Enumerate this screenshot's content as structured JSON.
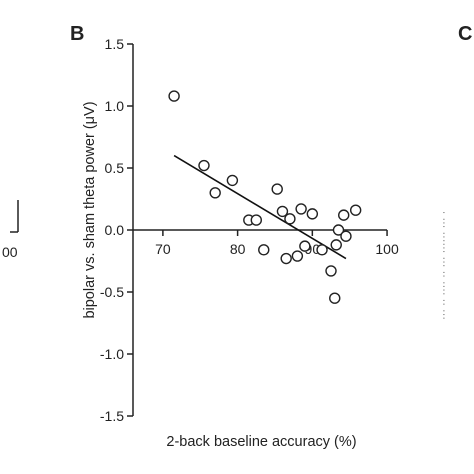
{
  "panels": {
    "main_letter": "B",
    "right_letter": "C"
  },
  "left_edge": {
    "tick_label": "00"
  },
  "chart_data": {
    "type": "scatter",
    "title": "",
    "xlabel": "2-back baseline accuracy (%)",
    "ylabel": "bipolar vs. sham theta power (μV)",
    "xlim": [
      66,
      102
    ],
    "ylim": [
      -1.5,
      1.5
    ],
    "x_ticks": [
      70,
      80,
      90,
      100
    ],
    "x_tick_labels": [
      "70",
      "80",
      "90",
      "100"
    ],
    "y_ticks": [
      1.5,
      1.0,
      0.5,
      0.0,
      -0.5,
      -1.0,
      -1.5
    ],
    "y_tick_labels": [
      "1.5",
      "1.0",
      "0.5",
      "0.0",
      "-0.5",
      "-1.0",
      "-1.5"
    ],
    "grid": false,
    "zero_line": true,
    "points": [
      {
        "x": 71.5,
        "y": 1.08
      },
      {
        "x": 75.5,
        "y": 0.52
      },
      {
        "x": 77.0,
        "y": 0.3
      },
      {
        "x": 79.3,
        "y": 0.4
      },
      {
        "x": 81.5,
        "y": 0.08
      },
      {
        "x": 82.5,
        "y": 0.08
      },
      {
        "x": 83.5,
        "y": -0.16
      },
      {
        "x": 85.3,
        "y": 0.33
      },
      {
        "x": 86.0,
        "y": 0.15
      },
      {
        "x": 86.5,
        "y": -0.23
      },
      {
        "x": 87.0,
        "y": 0.09
      },
      {
        "x": 88.0,
        "y": -0.21
      },
      {
        "x": 88.5,
        "y": 0.17
      },
      {
        "x": 89.0,
        "y": -0.13
      },
      {
        "x": 90.0,
        "y": 0.13
      },
      {
        "x": 91.3,
        "y": -0.16
      },
      {
        "x": 92.5,
        "y": -0.33
      },
      {
        "x": 93.0,
        "y": -0.55
      },
      {
        "x": 93.2,
        "y": -0.12
      },
      {
        "x": 93.5,
        "y": 0.0
      },
      {
        "x": 94.2,
        "y": 0.12
      },
      {
        "x": 94.5,
        "y": -0.05
      },
      {
        "x": 95.8,
        "y": 0.16
      }
    ],
    "fit_line": {
      "x": [
        71.5,
        94.5
      ],
      "y": [
        0.6,
        -0.23
      ]
    }
  }
}
